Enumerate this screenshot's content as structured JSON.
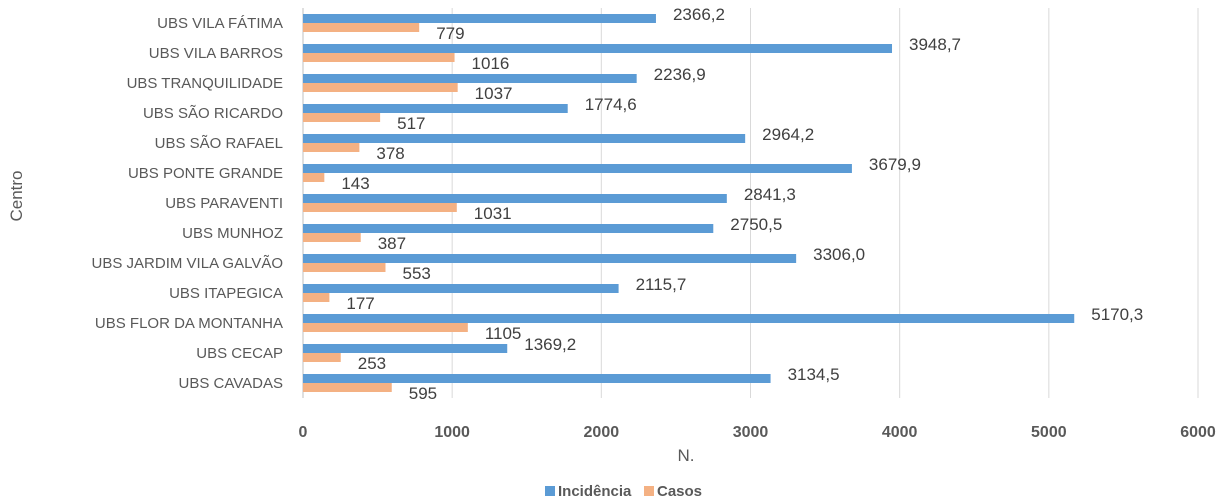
{
  "chart_data": {
    "type": "bar",
    "orientation": "horizontal",
    "xlabel": "N.",
    "ylabel": "Centro",
    "xlim": [
      0,
      6000
    ],
    "x_ticks": [
      "0",
      "1000",
      "2000",
      "3000",
      "4000",
      "5000",
      "6000"
    ],
    "grid": "vertical",
    "legend_position": "bottom",
    "categories": [
      "UBS VILA FÁTIMA",
      "UBS VILA BARROS",
      "UBS TRANQUILIDADE",
      "UBS SÃO RICARDO",
      "UBS SÃO RAFAEL",
      "UBS PONTE GRANDE",
      "UBS PARAVENTI",
      "UBS MUNHOZ",
      "UBS JARDIM VILA GALVÃO",
      "UBS ITAPEGICA",
      "UBS FLOR DA MONTANHA",
      "UBS CECAP",
      "UBS CAVADAS"
    ],
    "series": [
      {
        "name": "Incidência",
        "color": "#5B9BD5",
        "values": [
          2366.2,
          3948.7,
          2236.9,
          1774.6,
          2964.2,
          3679.9,
          2841.3,
          2750.5,
          3306.0,
          2115.7,
          5170.3,
          1369.2,
          3134.5
        ],
        "labels": [
          "2366,2",
          "3948,7",
          "2236,9",
          "1774,6",
          "2964,2",
          "3679,9",
          "2841,3",
          "2750,5",
          "3306,0",
          "2115,7",
          "5170,3",
          "1369,2",
          "3134,5"
        ]
      },
      {
        "name": "Casos",
        "color": "#F4B183",
        "values": [
          779,
          1016,
          1037,
          517,
          378,
          143,
          1031,
          387,
          553,
          177,
          1105,
          253,
          595
        ],
        "labels": [
          "779",
          "1016",
          "1037",
          "517",
          "378",
          "143",
          "1031",
          "387",
          "553",
          "177",
          "1105",
          "253",
          "595"
        ]
      }
    ]
  }
}
